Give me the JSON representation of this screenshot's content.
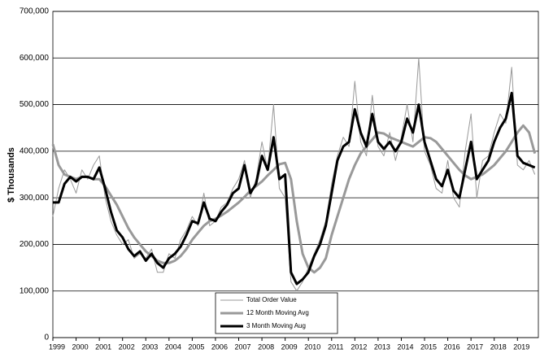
{
  "chart_data": {
    "type": "line",
    "y_label": "$ Thousands",
    "x": [
      1999,
      1999.25,
      1999.5,
      1999.75,
      2000,
      2000.25,
      2000.5,
      2000.75,
      2001,
      2001.25,
      2001.5,
      2001.75,
      2002,
      2002.25,
      2002.5,
      2002.75,
      2003,
      2003.25,
      2003.5,
      2003.75,
      2004,
      2004.25,
      2004.5,
      2004.75,
      2005,
      2005.25,
      2005.5,
      2005.75,
      2006,
      2006.25,
      2006.5,
      2006.75,
      2007,
      2007.25,
      2007.5,
      2007.75,
      2008,
      2008.25,
      2008.5,
      2008.75,
      2009,
      2009.25,
      2009.5,
      2009.75,
      2010,
      2010.25,
      2010.5,
      2010.75,
      2011,
      2011.25,
      2011.5,
      2011.75,
      2012,
      2012.25,
      2012.5,
      2012.75,
      2013,
      2013.25,
      2013.5,
      2013.75,
      2014,
      2014.25,
      2014.5,
      2014.75,
      2015,
      2015.25,
      2015.5,
      2015.75,
      2016,
      2016.25,
      2016.5,
      2016.75,
      2017,
      2017.25,
      2017.5,
      2017.75,
      2018,
      2018.25,
      2018.5,
      2018.75,
      2019,
      2019.25,
      2019.5,
      2019.75
    ],
    "series": [
      {
        "name": "Total Order Value",
        "color": "#999999",
        "width": 1,
        "values": [
          260000,
          320000,
          360000,
          340000,
          310000,
          360000,
          340000,
          370000,
          390000,
          300000,
          250000,
          220000,
          200000,
          210000,
          170000,
          180000,
          170000,
          190000,
          140000,
          140000,
          180000,
          170000,
          210000,
          230000,
          260000,
          240000,
          310000,
          240000,
          250000,
          280000,
          290000,
          320000,
          340000,
          380000,
          300000,
          340000,
          420000,
          360000,
          500000,
          320000,
          300000,
          120000,
          100000,
          120000,
          150000,
          180000,
          210000,
          250000,
          330000,
          390000,
          430000,
          410000,
          550000,
          420000,
          390000,
          520000,
          410000,
          390000,
          440000,
          380000,
          430000,
          500000,
          420000,
          600000,
          400000,
          370000,
          320000,
          310000,
          380000,
          300000,
          280000,
          400000,
          480000,
          300000,
          380000,
          390000,
          440000,
          480000,
          460000,
          580000,
          370000,
          360000,
          380000,
          350000
        ]
      },
      {
        "name": "12 Month Moving Avg",
        "color": "#999999",
        "width": 3,
        "values": [
          415000,
          370000,
          350000,
          345000,
          340000,
          345000,
          345000,
          340000,
          340000,
          325000,
          305000,
          285000,
          260000,
          235000,
          215000,
          200000,
          185000,
          175000,
          165000,
          160000,
          160000,
          165000,
          175000,
          190000,
          210000,
          225000,
          240000,
          250000,
          255000,
          262000,
          270000,
          280000,
          290000,
          302000,
          315000,
          325000,
          335000,
          348000,
          360000,
          372000,
          375000,
          340000,
          250000,
          180000,
          150000,
          140000,
          150000,
          170000,
          220000,
          260000,
          300000,
          340000,
          370000,
          395000,
          410000,
          425000,
          440000,
          438000,
          430000,
          425000,
          420000,
          415000,
          410000,
          420000,
          430000,
          428000,
          420000,
          405000,
          390000,
          375000,
          360000,
          348000,
          340000,
          345000,
          350000,
          360000,
          370000,
          385000,
          400000,
          420000,
          440000,
          455000,
          440000,
          395000
        ]
      },
      {
        "name": "3 Month Moving Aug",
        "color": "#000000",
        "width": 3,
        "values": [
          290000,
          290000,
          330000,
          345000,
          335000,
          345000,
          345000,
          340000,
          365000,
          320000,
          270000,
          230000,
          215000,
          190000,
          175000,
          185000,
          165000,
          180000,
          160000,
          150000,
          170000,
          180000,
          195000,
          220000,
          250000,
          245000,
          290000,
          255000,
          250000,
          270000,
          285000,
          310000,
          320000,
          370000,
          310000,
          330000,
          390000,
          360000,
          430000,
          340000,
          350000,
          140000,
          115000,
          125000,
          140000,
          175000,
          200000,
          240000,
          310000,
          380000,
          410000,
          420000,
          490000,
          440000,
          410000,
          480000,
          420000,
          405000,
          420000,
          400000,
          420000,
          470000,
          440000,
          500000,
          420000,
          380000,
          340000,
          325000,
          360000,
          315000,
          300000,
          360000,
          420000,
          340000,
          360000,
          380000,
          420000,
          450000,
          470000,
          525000,
          390000,
          375000,
          370000,
          365000
        ]
      }
    ],
    "xlim": [
      1999,
      2019.9
    ],
    "xticks": [
      1999,
      2000,
      2001,
      2002,
      2003,
      2004,
      2005,
      2006,
      2007,
      2008,
      2009,
      2010,
      2011,
      2012,
      2013,
      2014,
      2015,
      2016,
      2017,
      2018,
      2019
    ],
    "ylim": [
      0,
      700000
    ],
    "yticks": [
      0,
      {
        "value": 100000,
        "label": "100,000"
      },
      {
        "value": 200000,
        "label": "200,000"
      },
      {
        "value": 300000,
        "label": "300,000"
      },
      {
        "value": 400000,
        "label": "400,000"
      },
      {
        "value": 500000,
        "label": "500,000"
      },
      {
        "value": 600000,
        "label": "600,000"
      },
      {
        "value": 700000,
        "label": "700,000"
      }
    ],
    "grid": true,
    "legend": "bottom"
  }
}
